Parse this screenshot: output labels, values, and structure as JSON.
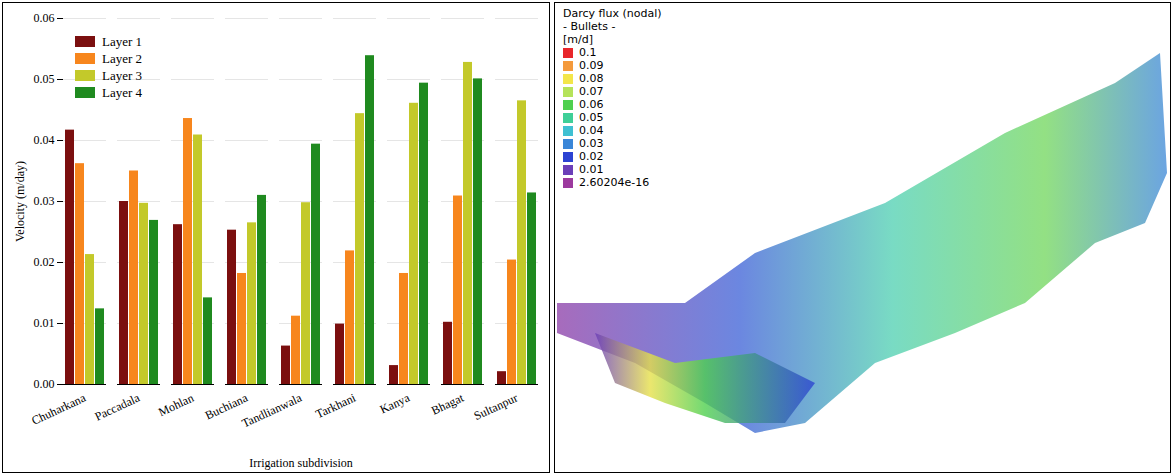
{
  "chart_data": {
    "type": "bar",
    "categories": [
      "Chuharkana",
      "Paccadala",
      "Mohlan",
      "Buchiana",
      "Tandlianwala",
      "Tarkhani",
      "Kanya",
      "Bhagat",
      "Sultanpur"
    ],
    "series": [
      {
        "name": "Layer 1",
        "color": "#7b0f0f",
        "values": [
          0.0417,
          0.03,
          0.0262,
          0.0253,
          0.0063,
          0.0099,
          0.0031,
          0.0102,
          0.0021
        ]
      },
      {
        "name": "Layer 2",
        "color": "#f7861d",
        "values": [
          0.0362,
          0.035,
          0.0436,
          0.0182,
          0.0112,
          0.0219,
          0.0182,
          0.0309,
          0.0204
        ]
      },
      {
        "name": "Layer 3",
        "color": "#c3c92a",
        "values": [
          0.0213,
          0.0297,
          0.0409,
          0.0265,
          0.0298,
          0.0444,
          0.0461,
          0.0528,
          0.0465
        ]
      },
      {
        "name": "Layer 4",
        "color": "#1f8a1f",
        "values": [
          0.0124,
          0.0269,
          0.0142,
          0.031,
          0.0394,
          0.0539,
          0.0494,
          0.0501,
          0.0314
        ]
      }
    ],
    "xlabel": "Irrigation subdivision",
    "ylabel": "Velocity (m/day)",
    "ylim": [
      0,
      0.06
    ],
    "yticks": [
      {
        "value": 0,
        "label": "0.00"
      },
      {
        "value": 0.01,
        "label": "0.01"
      },
      {
        "value": 0.02,
        "label": "0.02"
      },
      {
        "value": 0.03,
        "label": "0.03"
      },
      {
        "value": 0.04,
        "label": "0.04"
      },
      {
        "value": 0.05,
        "label": "0.05"
      },
      {
        "value": 0.06,
        "label": "0.06"
      }
    ],
    "grid": true,
    "legend": "top-left"
  },
  "flux_panel": {
    "title": "Darcy flux (nodal)",
    "subtitle": "- Bullets -",
    "unit": "[m/d]",
    "legend": [
      {
        "label": "0.1",
        "color": "#e8262b"
      },
      {
        "label": "0.09",
        "color": "#f49a3c"
      },
      {
        "label": "0.08",
        "color": "#f3e64a"
      },
      {
        "label": "0.07",
        "color": "#b5e35a"
      },
      {
        "label": "0.06",
        "color": "#4fd04f"
      },
      {
        "label": "0.05",
        "color": "#3fcf98"
      },
      {
        "label": "0.04",
        "color": "#3fc0d2"
      },
      {
        "label": "0.03",
        "color": "#3a86d8"
      },
      {
        "label": "0.02",
        "color": "#2c43d3"
      },
      {
        "label": "0.01",
        "color": "#6b3fb8"
      },
      {
        "label": "2.60204e-16",
        "color": "#9c3a9e"
      }
    ]
  }
}
